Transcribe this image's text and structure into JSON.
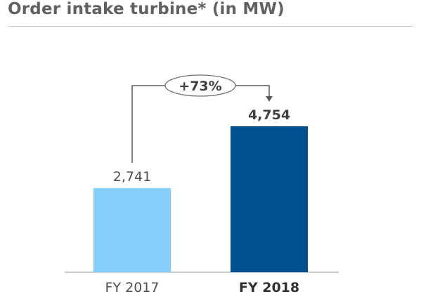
{
  "title": "Order intake turbine* (in MW)",
  "chart_data": {
    "type": "bar",
    "title": "Order intake turbine* (in MW)",
    "categories": [
      "FY 2017",
      "FY 2018"
    ],
    "values": [
      2741,
      4754
    ],
    "value_labels": [
      "2,741",
      "4,754"
    ],
    "colors": [
      "#84d0fb",
      "#004f8e"
    ],
    "growth_label": "+73%",
    "ylim": [
      0,
      5500
    ],
    "grid": false,
    "legend": "none"
  }
}
